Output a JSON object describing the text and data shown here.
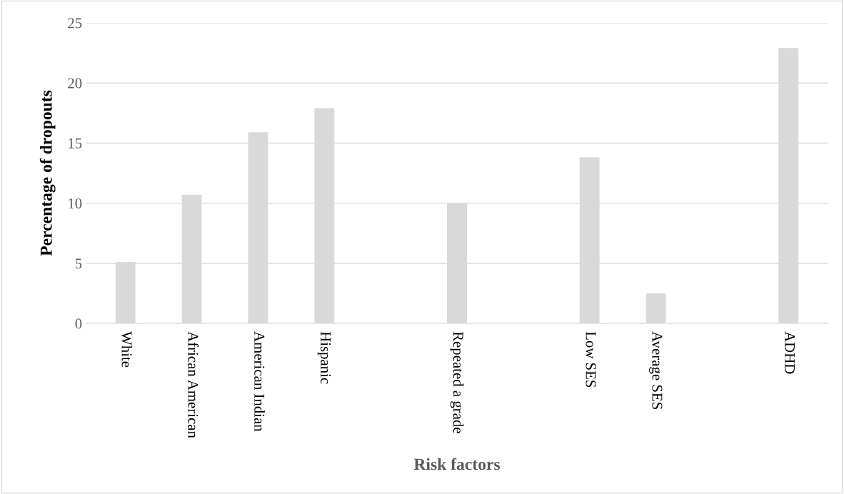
{
  "chart_data": {
    "type": "bar",
    "xlabel": "Risk factors",
    "ylabel": "Percentage of dropouts",
    "categories": [
      "White",
      "African American",
      "American Indian",
      "Hispanic",
      null,
      "Repeated a grade",
      null,
      "Low SES",
      "Average SES",
      null,
      "ADHD"
    ],
    "values": [
      5.1,
      10.7,
      15.9,
      17.9,
      null,
      10,
      null,
      13.8,
      2.5,
      null,
      22.9
    ],
    "color": "#d9d9d9",
    "ylim": [
      0,
      25
    ],
    "yticks": [
      0,
      5,
      10,
      15,
      20,
      25
    ],
    "grid": "y"
  }
}
